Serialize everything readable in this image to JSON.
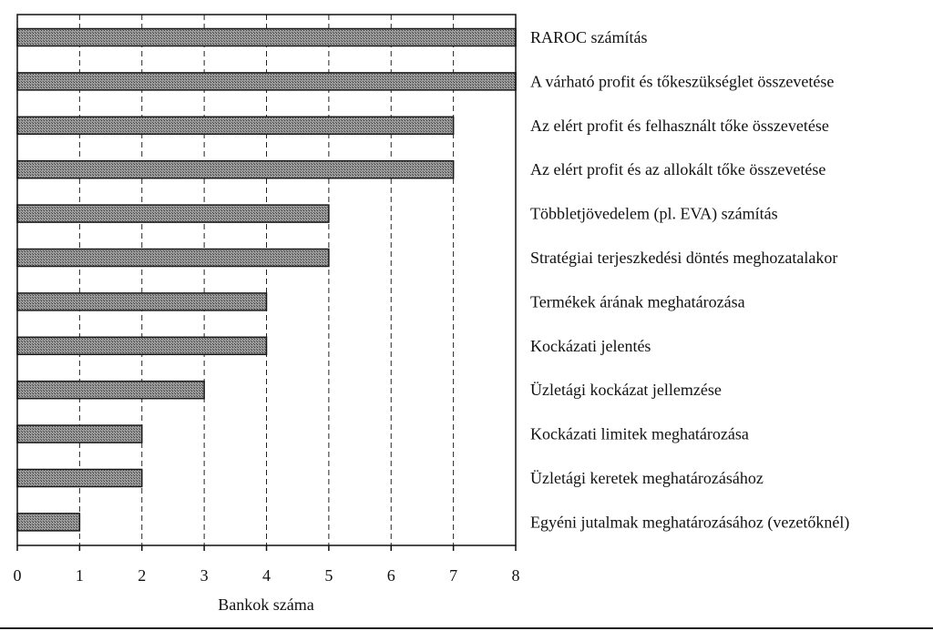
{
  "chart_data": {
    "type": "bar",
    "orientation": "horizontal",
    "categories": [
      "RAROC számítás",
      "A várható profit és tőkeszükséglet összevetése",
      "Az elért profit és felhasznált tőke összevetése",
      "Az elért profit és az allokált tőke összevetése",
      "Többletjövedelem (pl. EVA) számítás",
      "Stratégiai terjeszkedési döntés meghozatalakor",
      "Termékek árának meghatározása",
      "Kockázati jelentés",
      "Üzletági kockázat jellemzése",
      "Kockázati limitek meghatározása",
      "Üzletági keretek meghatározásához",
      "Egyéni jutalmak meghatározásához (vezetőknél)"
    ],
    "values": [
      8,
      8,
      7,
      7,
      5,
      5,
      4,
      4,
      3,
      2,
      2,
      1
    ],
    "xlabel": "Bankok száma",
    "ylabel": "",
    "xlim": [
      0,
      8
    ],
    "xticks": [
      "0",
      "1",
      "2",
      "3",
      "4",
      "5",
      "6",
      "7",
      "8"
    ],
    "grid": "vertical dashed",
    "bar_fill": "#8c8c8c",
    "bar_stroke": "#1a1a1a"
  }
}
